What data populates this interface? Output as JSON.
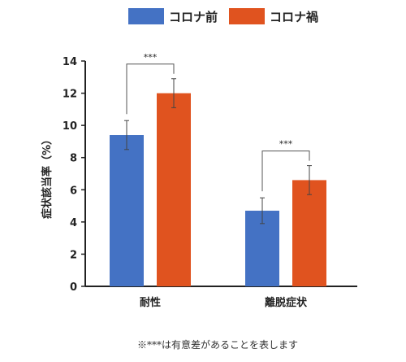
{
  "chart_data": {
    "type": "bar",
    "categories": [
      "耐性",
      "離脱症状"
    ],
    "series": [
      {
        "name": "コロナ前",
        "color": "#4472C4",
        "values": [
          9.4,
          4.7
        ],
        "errors": [
          0.9,
          0.8
        ]
      },
      {
        "name": "コロナ禍",
        "color": "#E0531F",
        "values": [
          12.0,
          6.6
        ],
        "errors": [
          0.9,
          0.9
        ]
      }
    ],
    "title": "",
    "xlabel": "",
    "ylabel": "症状該当率（%）",
    "ylim": [
      0,
      14
    ],
    "yticks": [
      0,
      2,
      4,
      6,
      8,
      10,
      12,
      14
    ],
    "grid": false,
    "legend": "top",
    "significance": [
      {
        "category": "耐性",
        "label": "***"
      },
      {
        "category": "離脱症状",
        "label": "***"
      }
    ]
  },
  "footnote": "※***は有意差があることを表します"
}
